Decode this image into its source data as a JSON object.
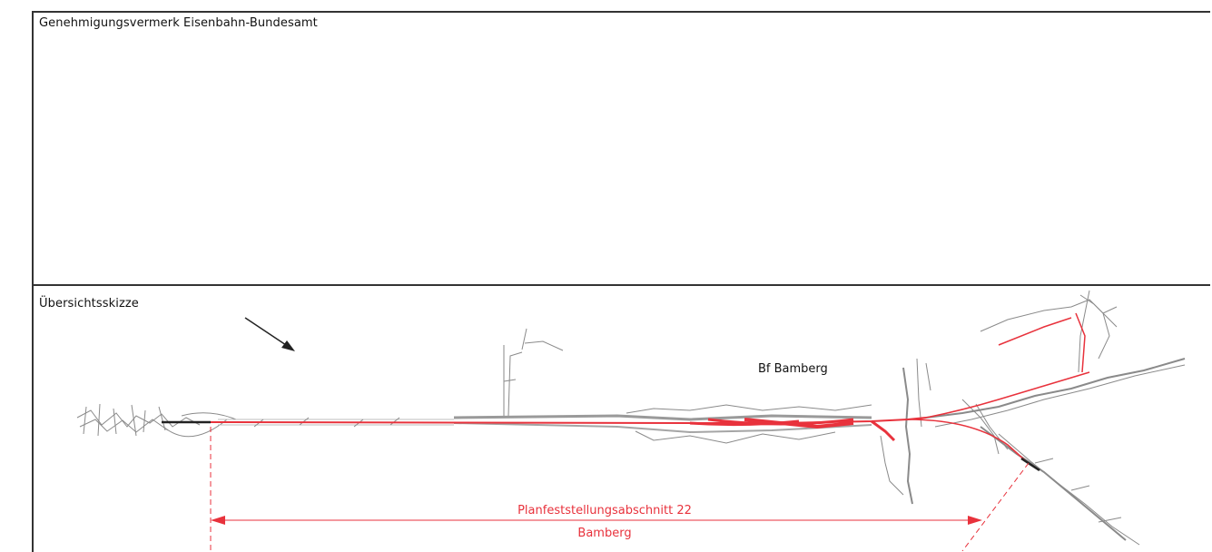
{
  "approval": {
    "title": "Genehmigungsvermerk Eisenbahn-Bundesamt"
  },
  "overview": {
    "title": "Übersichtsskizze",
    "station_label": "Bf Bamberg",
    "section_label_line1": "Planfeststellungsabschnitt 22",
    "section_label_line2": "Bamberg"
  },
  "colors": {
    "frame": "#333333",
    "rail_red": "#e8323c",
    "map_grey": "#8a8a8a",
    "text": "#111111"
  },
  "icons": {
    "north_arrow": "north-arrow-icon"
  }
}
